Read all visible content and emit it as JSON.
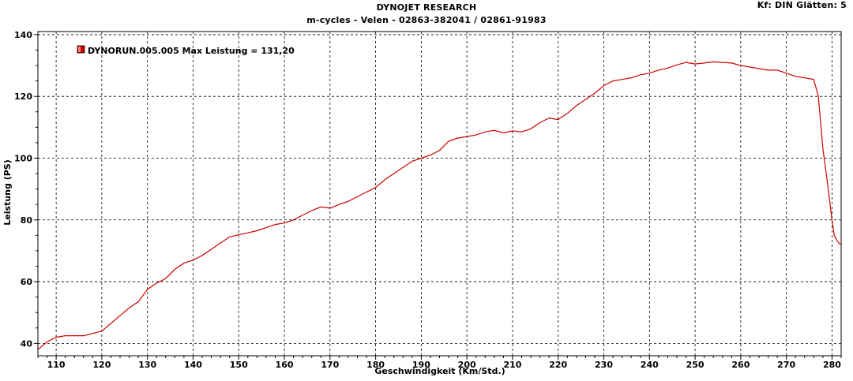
{
  "header": {
    "title": "DYNOJET RESEARCH",
    "subtitle": "m-cycles - Velen - 02863-382041  /  02861-91983",
    "settings": "Kf: DIN  Glätten: 5"
  },
  "chart_data": {
    "type": "line",
    "xlabel": "Geschwindigkeit (Km/Std.)",
    "ylabel": "Leistung (PS)",
    "xlim": [
      106,
      282
    ],
    "ylim": [
      36,
      141
    ],
    "xticks": [
      110,
      120,
      130,
      140,
      150,
      160,
      170,
      180,
      190,
      200,
      210,
      220,
      230,
      240,
      250,
      260,
      270,
      280
    ],
    "yticks": [
      40,
      60,
      80,
      100,
      120,
      140
    ],
    "grid": true,
    "legend": {
      "placement": "top-left",
      "label": "DYNORUN.005.005 Max Leistung = 131,20"
    },
    "colors": {
      "series": "#cc0000",
      "grid": "#000000",
      "plot_border": "#000000"
    },
    "series": [
      {
        "name": "DYNORUN.005.005",
        "x": [
          106,
          108,
          110,
          112,
          114,
          116,
          118,
          120,
          122,
          124,
          126,
          128,
          130,
          132,
          134,
          136,
          138,
          140,
          142,
          144,
          146,
          148,
          150,
          152,
          154,
          156,
          158,
          160,
          162,
          164,
          166,
          168,
          170,
          172,
          174,
          176,
          178,
          180,
          182,
          184,
          186,
          188,
          190,
          192,
          194,
          196,
          198,
          200,
          202,
          204,
          206,
          208,
          210,
          212,
          214,
          216,
          218,
          220,
          222,
          224,
          226,
          228,
          230,
          232,
          234,
          236,
          238,
          240,
          242,
          244,
          246,
          248,
          250,
          252,
          254,
          256,
          258,
          260,
          262,
          264,
          266,
          268,
          270,
          272,
          274,
          276,
          277,
          278,
          279,
          280,
          280.5,
          281,
          281.5,
          282
        ],
        "y": [
          38.0,
          40.5,
          42.0,
          42.5,
          42.5,
          42.5,
          43.2,
          44.0,
          46.5,
          49.0,
          51.5,
          53.5,
          57.5,
          59.5,
          61.0,
          64.0,
          66.0,
          67.0,
          68.5,
          70.5,
          72.5,
          74.5,
          75.2,
          75.8,
          76.5,
          77.5,
          78.5,
          79.0,
          80.0,
          81.5,
          83.0,
          84.2,
          83.8,
          85.0,
          86.0,
          87.5,
          89.0,
          90.5,
          93.0,
          95.0,
          97.0,
          99.0,
          100.0,
          101.0,
          102.5,
          105.5,
          106.5,
          107.0,
          107.5,
          108.5,
          109.0,
          108.2,
          108.8,
          108.5,
          109.5,
          111.5,
          113.0,
          112.5,
          114.5,
          117.0,
          119.0,
          121.0,
          123.5,
          125.0,
          125.5,
          126.0,
          127.0,
          127.5,
          128.5,
          129.2,
          130.2,
          131.0,
          130.5,
          130.8,
          131.2,
          131.0,
          130.8,
          130.0,
          129.5,
          129.0,
          128.5,
          128.5,
          127.5,
          126.5,
          126.0,
          125.5,
          120.0,
          103.0,
          92.0,
          80.0,
          75.0,
          73.5,
          72.5,
          72.0
        ]
      }
    ]
  }
}
